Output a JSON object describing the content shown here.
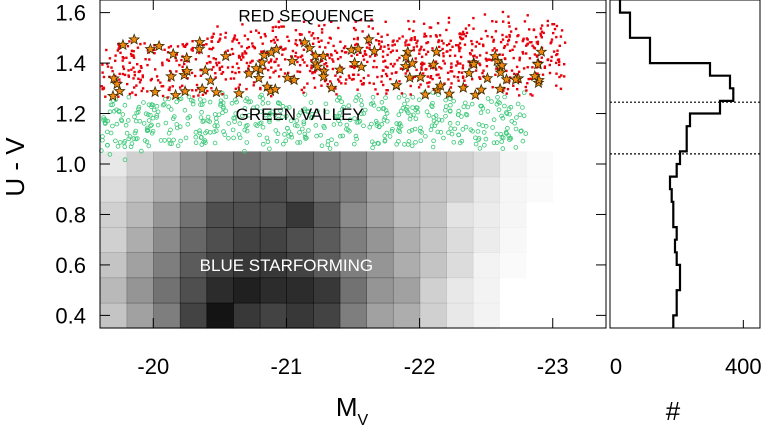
{
  "chart_data": [
    {
      "type": "scatter",
      "xlabel": "M",
      "xlabel_subscript": "V",
      "ylabel": "U - V",
      "xlim": [
        -19.6,
        -23.4
      ],
      "ylim": [
        0.35,
        1.65
      ],
      "xticks": [
        "-20",
        "-21",
        "-22",
        "-23"
      ],
      "xtick_values": [
        -20,
        -21,
        -22,
        -23
      ],
      "yticks": [
        "0.4",
        "0.6",
        "0.8",
        "1.0",
        "1.2",
        "1.4",
        "1.6"
      ],
      "ytick_values": [
        0.4,
        0.6,
        0.8,
        1.0,
        1.2,
        1.4,
        1.6
      ],
      "annotations": [
        {
          "text": "RED SEQUENCE",
          "x": -21.15,
          "y": 1.565,
          "color": "#000000"
        },
        {
          "text": "GREEN VALLEY",
          "x": -21.1,
          "y": 1.175,
          "color": "#000000"
        },
        {
          "text": "BLUE STARFORMING",
          "x": -21.0,
          "y": 0.575,
          "color": "#ffffff"
        }
      ],
      "colors": {
        "red_sequence": "#e8000b",
        "green_valley": "#3cc878",
        "stars": "#f08a10",
        "density": "#000000"
      },
      "density": {
        "x_edges": [
          -19.6,
          -19.8,
          -20.0,
          -20.2,
          -20.4,
          -20.6,
          -20.8,
          -21.0,
          -21.2,
          -21.4,
          -21.6,
          -21.8,
          -22.0,
          -22.2,
          -22.4,
          -22.6,
          -22.8,
          -23.0,
          -23.2,
          -23.4
        ],
        "y_edges": [
          0.35,
          0.45,
          0.55,
          0.65,
          0.75,
          0.85,
          0.95,
          1.05
        ],
        "values": [
          [
            0.25,
            0.4,
            0.55,
            0.8,
            1.0,
            0.85,
            0.8,
            0.85,
            0.8,
            0.55,
            0.4,
            0.35,
            0.2,
            0.1,
            0.05,
            0.0,
            0.0,
            0.0,
            0.0
          ],
          [
            0.3,
            0.45,
            0.6,
            0.75,
            0.9,
            0.95,
            0.9,
            0.9,
            0.85,
            0.6,
            0.45,
            0.4,
            0.2,
            0.1,
            0.05,
            0.0,
            0.0,
            0.0,
            0.0
          ],
          [
            0.25,
            0.4,
            0.55,
            0.7,
            0.8,
            0.85,
            0.85,
            0.8,
            0.7,
            0.55,
            0.45,
            0.35,
            0.25,
            0.15,
            0.05,
            0.02,
            0.0,
            0.0,
            0.0
          ],
          [
            0.2,
            0.35,
            0.5,
            0.65,
            0.75,
            0.8,
            0.8,
            0.75,
            0.7,
            0.55,
            0.45,
            0.35,
            0.25,
            0.15,
            0.08,
            0.03,
            0.0,
            0.0,
            0.0
          ],
          [
            0.2,
            0.3,
            0.45,
            0.6,
            0.75,
            0.75,
            0.75,
            0.85,
            0.7,
            0.5,
            0.4,
            0.3,
            0.25,
            0.12,
            0.08,
            0.04,
            0.0,
            0.0,
            0.0
          ],
          [
            0.15,
            0.25,
            0.35,
            0.5,
            0.65,
            0.7,
            0.75,
            0.7,
            0.6,
            0.55,
            0.4,
            0.3,
            0.25,
            0.2,
            0.1,
            0.04,
            0.02,
            0.0,
            0.0
          ],
          [
            0.1,
            0.2,
            0.3,
            0.45,
            0.55,
            0.6,
            0.55,
            0.6,
            0.55,
            0.5,
            0.4,
            0.3,
            0.25,
            0.2,
            0.15,
            0.05,
            0.02,
            0.0,
            0.0
          ]
        ]
      }
    },
    {
      "type": "histogram",
      "xlabel": "#",
      "xlim": [
        0,
        450
      ],
      "xticks": [
        "0",
        "400"
      ],
      "xtick_values": [
        0,
        400
      ],
      "bin_edges": [
        0.35,
        0.4,
        0.45,
        0.5,
        0.55,
        0.6,
        0.65,
        0.7,
        0.75,
        0.8,
        0.85,
        0.9,
        0.95,
        1.0,
        1.05,
        1.1,
        1.15,
        1.2,
        1.25,
        1.3,
        1.35,
        1.4,
        1.45,
        1.5,
        1.55,
        1.6,
        1.65
      ],
      "counts": [
        190,
        200,
        200,
        210,
        210,
        200,
        195,
        200,
        190,
        190,
        185,
        180,
        200,
        210,
        230,
        230,
        240,
        330,
        370,
        360,
        300,
        120,
        120,
        60,
        60,
        30
      ],
      "reference_lines_y": [
        1.245,
        1.04
      ]
    }
  ]
}
